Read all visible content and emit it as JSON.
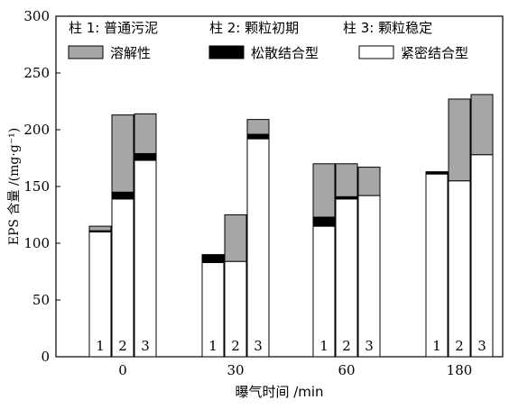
{
  "chart_data": {
    "type": "bar",
    "stacked": true,
    "xlabel": "曝气时间 /min",
    "ylabel": "EPS 含量 /(mg·g⁻¹)",
    "ylim": [
      0,
      300
    ],
    "yticks": [
      0,
      50,
      100,
      150,
      200,
      250,
      300
    ],
    "categories": [
      "0",
      "30",
      "60",
      "180"
    ],
    "column_labels": [
      "1",
      "2",
      "3"
    ],
    "column_legend": [
      "柱 1: 普通污泥",
      "柱 2: 颗粒初期",
      "柱 3: 颗粒稳定"
    ],
    "series": [
      {
        "name": "紧密结合型",
        "color": "#ffffff",
        "values": [
          [
            110,
            139,
            173
          ],
          [
            83,
            84,
            192
          ],
          [
            115,
            139,
            142
          ],
          [
            161,
            155,
            178
          ]
        ]
      },
      {
        "name": "松散结合型",
        "color": "#000000",
        "values": [
          [
            1,
            6,
            6
          ],
          [
            7,
            0,
            4
          ],
          [
            8,
            2,
            0
          ],
          [
            2,
            0,
            0
          ]
        ]
      },
      {
        "name": "溶解性",
        "color": "#a6a6a6",
        "values": [
          [
            4,
            68,
            35
          ],
          [
            0,
            41,
            13
          ],
          [
            47,
            29,
            25
          ],
          [
            0,
            72,
            53
          ]
        ]
      }
    ],
    "legend_order": [
      "溶解性",
      "松散结合型",
      "紧密结合型"
    ],
    "legend_position": "top-left inside",
    "grid": false
  }
}
